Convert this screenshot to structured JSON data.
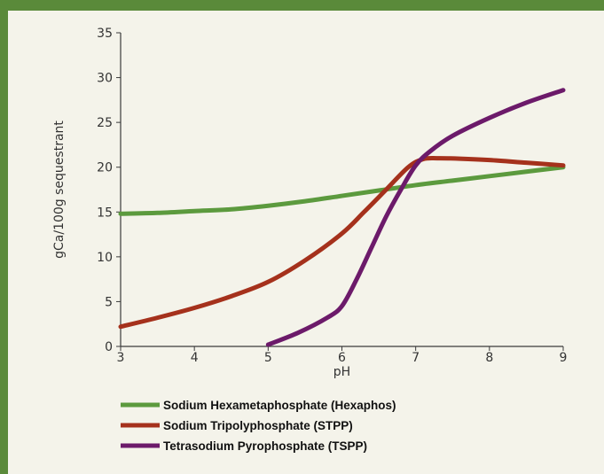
{
  "chart_data": {
    "type": "line",
    "title": "",
    "xlabel": "pH",
    "ylabel": "gCa/100g sequestrant",
    "xlim": [
      3,
      9
    ],
    "ylim": [
      0,
      35
    ],
    "xticks": [
      3,
      4,
      5,
      6,
      7,
      8,
      9
    ],
    "yticks": [
      0,
      5,
      10,
      15,
      20,
      25,
      30,
      35
    ],
    "grid": false,
    "legend_position": "bottom",
    "series": [
      {
        "name": "Sodium Hexametaphosphate (Hexaphos)",
        "color": "#5c9a3e",
        "x": [
          3,
          3.5,
          4,
          4.5,
          5,
          5.5,
          6,
          6.5,
          7,
          7.5,
          8,
          8.5,
          9
        ],
        "y": [
          14.8,
          14.9,
          15.1,
          15.3,
          15.7,
          16.2,
          16.8,
          17.4,
          18.0,
          18.5,
          19.0,
          19.5,
          20.0
        ]
      },
      {
        "name": "Sodium Tripolyphosphate (STPP)",
        "color": "#a5311c",
        "x": [
          3,
          3.5,
          4,
          4.5,
          5,
          5.5,
          6,
          6.3,
          6.6,
          6.9,
          7.1,
          7.3,
          7.6,
          8,
          8.5,
          9
        ],
        "y": [
          2.2,
          3.2,
          4.3,
          5.6,
          7.2,
          9.6,
          12.6,
          15.0,
          17.5,
          20.0,
          20.9,
          21.0,
          20.95,
          20.8,
          20.5,
          20.2
        ]
      },
      {
        "name": "Tetrasodium Pyrophosphate (TSPP)",
        "color": "#6c1a6a",
        "x": [
          5,
          5.4,
          5.8,
          6,
          6.2,
          6.4,
          6.6,
          6.8,
          7,
          7.2,
          7.5,
          8,
          8.5,
          9
        ],
        "y": [
          0.2,
          1.5,
          3.2,
          4.5,
          7.5,
          11.0,
          14.5,
          17.5,
          20.2,
          21.8,
          23.5,
          25.5,
          27.2,
          28.6
        ]
      }
    ]
  }
}
